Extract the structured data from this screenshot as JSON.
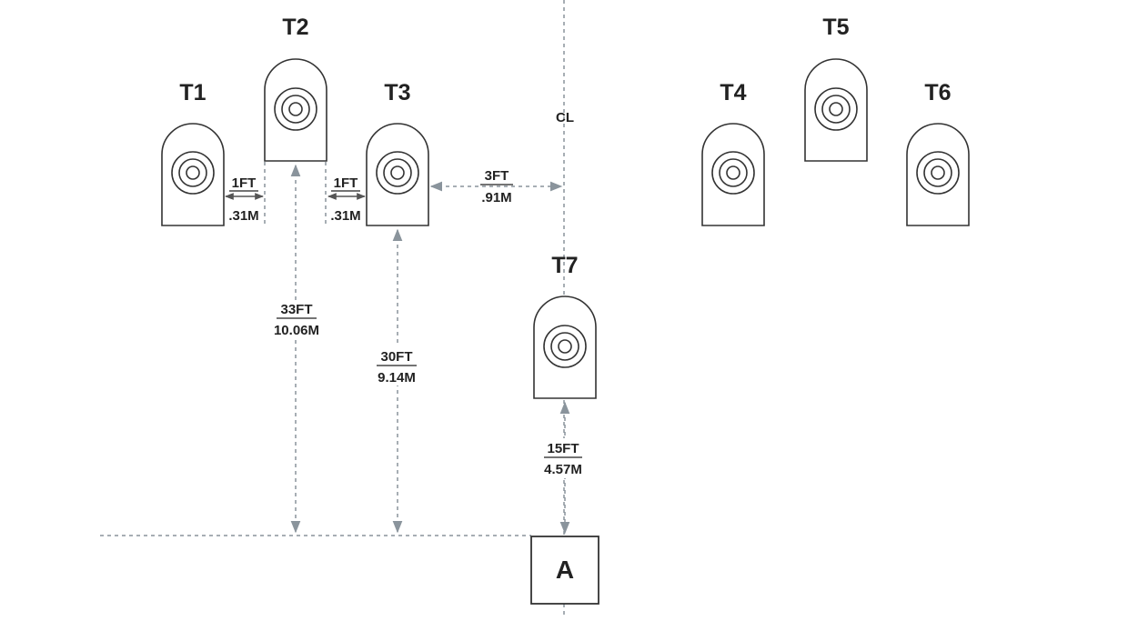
{
  "diagram": {
    "centerline_label": "CL",
    "position_label": "A",
    "colors": {
      "outline": "#333333",
      "dimension": "#8a949c",
      "text": "#222222"
    },
    "targets": [
      {
        "id": "T1",
        "label": "T1"
      },
      {
        "id": "T2",
        "label": "T2"
      },
      {
        "id": "T3",
        "label": "T3"
      },
      {
        "id": "T4",
        "label": "T4"
      },
      {
        "id": "T5",
        "label": "T5"
      },
      {
        "id": "T6",
        "label": "T6"
      },
      {
        "id": "T7",
        "label": "T7"
      }
    ],
    "dimensions": {
      "t1_t2_gap": {
        "ft": "1FT",
        "m": ".31M"
      },
      "t2_t3_gap": {
        "ft": "1FT",
        "m": ".31M"
      },
      "t3_to_centerline": {
        "ft": "3FT",
        "m": ".91M"
      },
      "t2_to_line": {
        "ft": "33FT",
        "m": "10.06M"
      },
      "t3_to_line": {
        "ft": "30FT",
        "m": "9.14M"
      },
      "t7_to_a": {
        "ft": "15FT",
        "m": "4.57M"
      }
    }
  }
}
